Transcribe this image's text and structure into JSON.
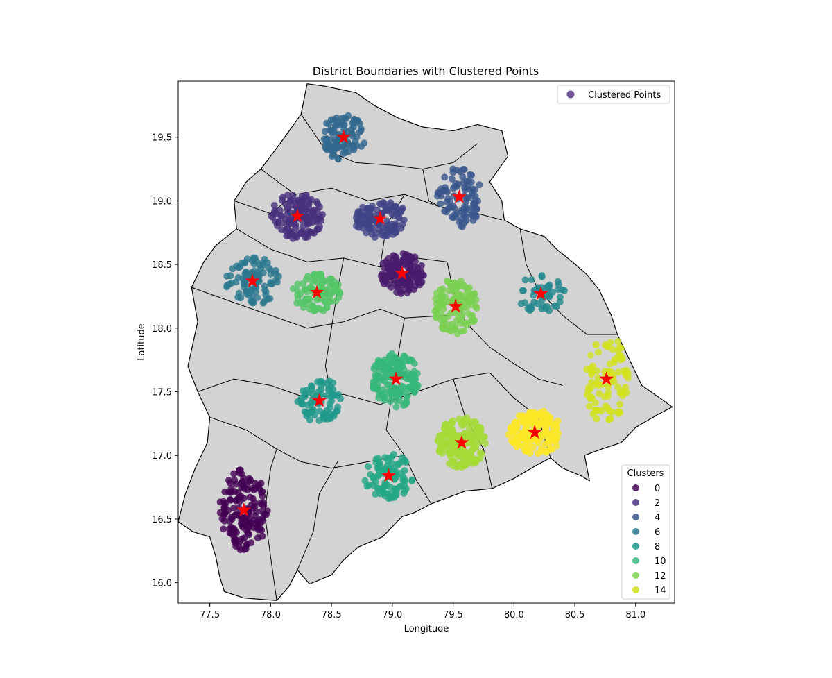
{
  "chart_data": {
    "type": "scatter",
    "title": "District Boundaries with Clustered Points",
    "xlabel": "Longitude",
    "ylabel": "Latitude",
    "xlim": [
      77.24,
      81.32
    ],
    "ylim": [
      15.84,
      19.94
    ],
    "xticks": [
      77.5,
      78.0,
      78.5,
      79.0,
      79.5,
      80.0,
      80.5,
      81.0
    ],
    "yticks": [
      16.0,
      16.5,
      17.0,
      17.5,
      18.0,
      18.5,
      19.0,
      19.5
    ],
    "grid": false,
    "map_fill_color": "#d3d3d3",
    "map_edge_color": "#000000",
    "point_legend": {
      "label": "Clustered Points",
      "color": "#482878",
      "placement": "top-right"
    },
    "cluster_legend": {
      "title": "Clusters",
      "entries": [
        0,
        2,
        4,
        6,
        8,
        10,
        12,
        14
      ],
      "placement": "bottom-right"
    },
    "centroid_marker": {
      "shape": "star",
      "color": "#ff0000"
    },
    "boundary": [
      [
        77.24,
        16.48
      ],
      [
        77.36,
        16.4
      ],
      [
        77.5,
        16.36
      ],
      [
        77.55,
        16.2
      ],
      [
        77.58,
        16.05
      ],
      [
        77.62,
        15.93
      ],
      [
        77.78,
        15.88
      ],
      [
        78.05,
        15.86
      ],
      [
        78.15,
        15.97
      ],
      [
        78.22,
        16.1
      ],
      [
        78.32,
        15.99
      ],
      [
        78.5,
        16.06
      ],
      [
        78.6,
        16.18
      ],
      [
        78.72,
        16.28
      ],
      [
        78.92,
        16.36
      ],
      [
        79.08,
        16.52
      ],
      [
        79.18,
        16.55
      ],
      [
        79.32,
        16.62
      ],
      [
        79.6,
        16.72
      ],
      [
        79.82,
        16.74
      ],
      [
        80.0,
        16.82
      ],
      [
        80.18,
        16.92
      ],
      [
        80.3,
        16.98
      ],
      [
        80.4,
        16.9
      ],
      [
        80.55,
        16.84
      ],
      [
        80.62,
        16.8
      ],
      [
        80.58,
        17.0
      ],
      [
        80.72,
        17.05
      ],
      [
        80.88,
        17.1
      ],
      [
        81.0,
        17.22
      ],
      [
        81.18,
        17.32
      ],
      [
        81.3,
        17.38
      ],
      [
        81.2,
        17.45
      ],
      [
        81.05,
        17.55
      ],
      [
        80.95,
        17.75
      ],
      [
        80.85,
        17.95
      ],
      [
        80.8,
        18.1
      ],
      [
        80.7,
        18.3
      ],
      [
        80.6,
        18.42
      ],
      [
        80.48,
        18.52
      ],
      [
        80.35,
        18.62
      ],
      [
        80.25,
        18.72
      ],
      [
        80.05,
        18.78
      ],
      [
        79.92,
        18.85
      ],
      [
        79.9,
        19.0
      ],
      [
        79.8,
        19.15
      ],
      [
        79.95,
        19.35
      ],
      [
        79.9,
        19.55
      ],
      [
        79.7,
        19.6
      ],
      [
        79.5,
        19.55
      ],
      [
        79.25,
        19.58
      ],
      [
        79.05,
        19.65
      ],
      [
        78.85,
        19.75
      ],
      [
        78.7,
        19.85
      ],
      [
        78.45,
        19.9
      ],
      [
        78.3,
        19.92
      ],
      [
        78.25,
        19.68
      ],
      [
        78.1,
        19.48
      ],
      [
        77.92,
        19.25
      ],
      [
        77.8,
        19.15
      ],
      [
        77.7,
        19.0
      ],
      [
        77.72,
        18.78
      ],
      [
        77.55,
        18.65
      ],
      [
        77.45,
        18.52
      ],
      [
        77.35,
        18.32
      ],
      [
        77.4,
        18.05
      ],
      [
        77.32,
        17.7
      ],
      [
        77.4,
        17.5
      ],
      [
        77.5,
        17.3
      ],
      [
        77.48,
        17.1
      ],
      [
        77.38,
        16.9
      ],
      [
        77.3,
        16.7
      ],
      [
        77.24,
        16.48
      ]
    ],
    "district_lines": [
      [
        [
          78.25,
          19.68
        ],
        [
          78.45,
          19.4
        ],
        [
          78.7,
          19.3
        ],
        [
          79.0,
          19.28
        ],
        [
          79.25,
          19.25
        ],
        [
          79.5,
          19.3
        ],
        [
          79.7,
          19.45
        ]
      ],
      [
        [
          77.92,
          19.25
        ],
        [
          78.2,
          19.05
        ],
        [
          78.5,
          19.1
        ],
        [
          78.8,
          19.0
        ],
        [
          79.1,
          19.05
        ],
        [
          79.4,
          18.95
        ],
        [
          79.7,
          18.9
        ],
        [
          79.9,
          18.85
        ]
      ],
      [
        [
          77.72,
          18.78
        ],
        [
          78.0,
          18.62
        ],
        [
          78.3,
          18.52
        ],
        [
          78.6,
          18.55
        ],
        [
          78.9,
          18.48
        ],
        [
          79.2,
          18.55
        ],
        [
          79.45,
          18.52
        ]
      ],
      [
        [
          79.45,
          18.52
        ],
        [
          79.5,
          18.3
        ],
        [
          79.6,
          18.05
        ],
        [
          79.8,
          17.85
        ],
        [
          80.0,
          17.72
        ],
        [
          80.2,
          17.6
        ],
        [
          80.4,
          17.55
        ]
      ],
      [
        [
          77.35,
          18.32
        ],
        [
          77.7,
          18.2
        ],
        [
          78.0,
          18.1
        ],
        [
          78.3,
          18.0
        ],
        [
          78.6,
          18.05
        ],
        [
          78.9,
          18.15
        ],
        [
          79.1,
          18.08
        ],
        [
          79.45,
          18.1
        ]
      ],
      [
        [
          77.4,
          17.5
        ],
        [
          77.7,
          17.6
        ],
        [
          78.0,
          17.55
        ],
        [
          78.3,
          17.45
        ],
        [
          78.6,
          17.48
        ],
        [
          78.9,
          17.4
        ],
        [
          79.2,
          17.5
        ],
        [
          79.5,
          17.6
        ],
        [
          79.8,
          17.65
        ]
      ],
      [
        [
          77.5,
          17.3
        ],
        [
          77.8,
          17.2
        ],
        [
          78.05,
          17.05
        ],
        [
          78.25,
          16.95
        ],
        [
          78.5,
          16.9
        ],
        [
          78.8,
          16.95
        ],
        [
          79.1,
          17.0
        ]
      ],
      [
        [
          78.22,
          16.1
        ],
        [
          78.35,
          16.4
        ],
        [
          78.4,
          16.7
        ],
        [
          78.55,
          16.95
        ]
      ],
      [
        [
          78.6,
          18.55
        ],
        [
          78.55,
          18.3
        ],
        [
          78.5,
          18.0
        ],
        [
          78.45,
          17.7
        ],
        [
          78.5,
          17.48
        ]
      ],
      [
        [
          79.1,
          18.08
        ],
        [
          79.05,
          17.8
        ],
        [
          79.0,
          17.5
        ],
        [
          78.95,
          17.2
        ],
        [
          79.1,
          17.0
        ],
        [
          79.2,
          16.8
        ],
        [
          79.32,
          16.62
        ]
      ],
      [
        [
          79.5,
          17.6
        ],
        [
          79.6,
          17.3
        ],
        [
          79.75,
          17.05
        ],
        [
          79.82,
          16.74
        ]
      ],
      [
        [
          79.8,
          17.65
        ],
        [
          80.0,
          17.45
        ],
        [
          80.2,
          17.3
        ],
        [
          80.3,
          16.98
        ]
      ],
      [
        [
          80.05,
          18.78
        ],
        [
          80.1,
          18.5
        ],
        [
          80.2,
          18.3
        ],
        [
          80.4,
          18.1
        ],
        [
          80.6,
          17.95
        ],
        [
          80.85,
          17.95
        ]
      ],
      [
        [
          78.05,
          15.86
        ],
        [
          78.0,
          16.2
        ],
        [
          77.95,
          16.55
        ],
        [
          78.0,
          16.9
        ],
        [
          78.05,
          17.05
        ]
      ],
      [
        [
          77.7,
          19.0
        ],
        [
          78.0,
          18.9
        ],
        [
          78.2,
          19.05
        ]
      ],
      [
        [
          78.9,
          18.48
        ],
        [
          78.95,
          18.8
        ],
        [
          79.1,
          19.05
        ]
      ],
      [
        [
          79.25,
          19.25
        ],
        [
          79.3,
          19.0
        ],
        [
          79.4,
          18.95
        ]
      ]
    ],
    "clusters": [
      {
        "id": 0,
        "color": "#440154",
        "center": [
          77.78,
          16.57
        ],
        "spread": [
          0.2,
          0.32
        ],
        "n": 150,
        "seed": 11
      },
      {
        "id": 1,
        "color": "#481a6c",
        "center": [
          79.08,
          18.43
        ],
        "spread": [
          0.18,
          0.16
        ],
        "n": 140,
        "seed": 12
      },
      {
        "id": 2,
        "color": "#472f7d",
        "center": [
          78.22,
          18.88
        ],
        "spread": [
          0.22,
          0.18
        ],
        "n": 130,
        "seed": 13
      },
      {
        "id": 3,
        "color": "#414487",
        "center": [
          78.9,
          18.86
        ],
        "spread": [
          0.22,
          0.15
        ],
        "n": 120,
        "seed": 14
      },
      {
        "id": 4,
        "color": "#39568c",
        "center": [
          79.55,
          19.03
        ],
        "spread": [
          0.18,
          0.25
        ],
        "n": 90,
        "seed": 15
      },
      {
        "id": 5,
        "color": "#31688e",
        "center": [
          78.6,
          19.5
        ],
        "spread": [
          0.18,
          0.18
        ],
        "n": 90,
        "seed": 16
      },
      {
        "id": 6,
        "color": "#2a788e",
        "center": [
          77.85,
          18.37
        ],
        "spread": [
          0.22,
          0.2
        ],
        "n": 90,
        "seed": 17
      },
      {
        "id": 7,
        "color": "#23888e",
        "center": [
          80.22,
          18.27
        ],
        "spread": [
          0.2,
          0.15
        ],
        "n": 50,
        "seed": 18
      },
      {
        "id": 8,
        "color": "#1f988b",
        "center": [
          78.4,
          17.43
        ],
        "spread": [
          0.18,
          0.18
        ],
        "n": 80,
        "seed": 19
      },
      {
        "id": 9,
        "color": "#22a884",
        "center": [
          78.97,
          16.84
        ],
        "spread": [
          0.2,
          0.18
        ],
        "n": 90,
        "seed": 20
      },
      {
        "id": 10,
        "color": "#35b779",
        "center": [
          79.03,
          17.6
        ],
        "spread": [
          0.2,
          0.22
        ],
        "n": 150,
        "seed": 21
      },
      {
        "id": 11,
        "color": "#54c568",
        "center": [
          78.38,
          18.28
        ],
        "spread": [
          0.2,
          0.15
        ],
        "n": 90,
        "seed": 22
      },
      {
        "id": 12,
        "color": "#7ad151",
        "center": [
          79.52,
          18.17
        ],
        "spread": [
          0.18,
          0.22
        ],
        "n": 130,
        "seed": 23
      },
      {
        "id": 13,
        "color": "#a5db36",
        "center": [
          79.57,
          17.1
        ],
        "spread": [
          0.2,
          0.2
        ],
        "n": 170,
        "seed": 24
      },
      {
        "id": 14,
        "color": "#d2e21b",
        "center": [
          80.76,
          17.6
        ],
        "spread": [
          0.18,
          0.35
        ],
        "n": 90,
        "seed": 25
      },
      {
        "id": 15,
        "color": "#fde725",
        "center": [
          80.17,
          17.18
        ],
        "spread": [
          0.22,
          0.18
        ],
        "n": 140,
        "seed": 26
      }
    ]
  }
}
